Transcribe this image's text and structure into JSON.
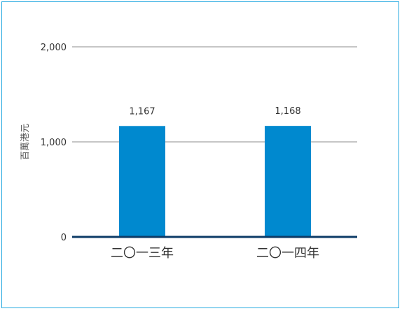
{
  "chart_data": {
    "type": "bar",
    "categories": [
      "二〇一三年",
      "二〇一四年"
    ],
    "values": [
      1167,
      1168
    ],
    "data_labels": [
      "1,167",
      "1,168"
    ],
    "title": "",
    "xlabel": "",
    "ylabel": "百萬港元",
    "ylim": [
      0,
      2000
    ],
    "yticks": [
      0,
      1000,
      2000
    ],
    "ytick_labels": [
      "0",
      "1,000",
      "2,000"
    ],
    "grid": true,
    "legend": "none",
    "colors": {
      "bar": "#0089cf",
      "grid": "#8c8c8c",
      "baseline": "#0d3b66",
      "frame": "#26a9e0"
    }
  }
}
